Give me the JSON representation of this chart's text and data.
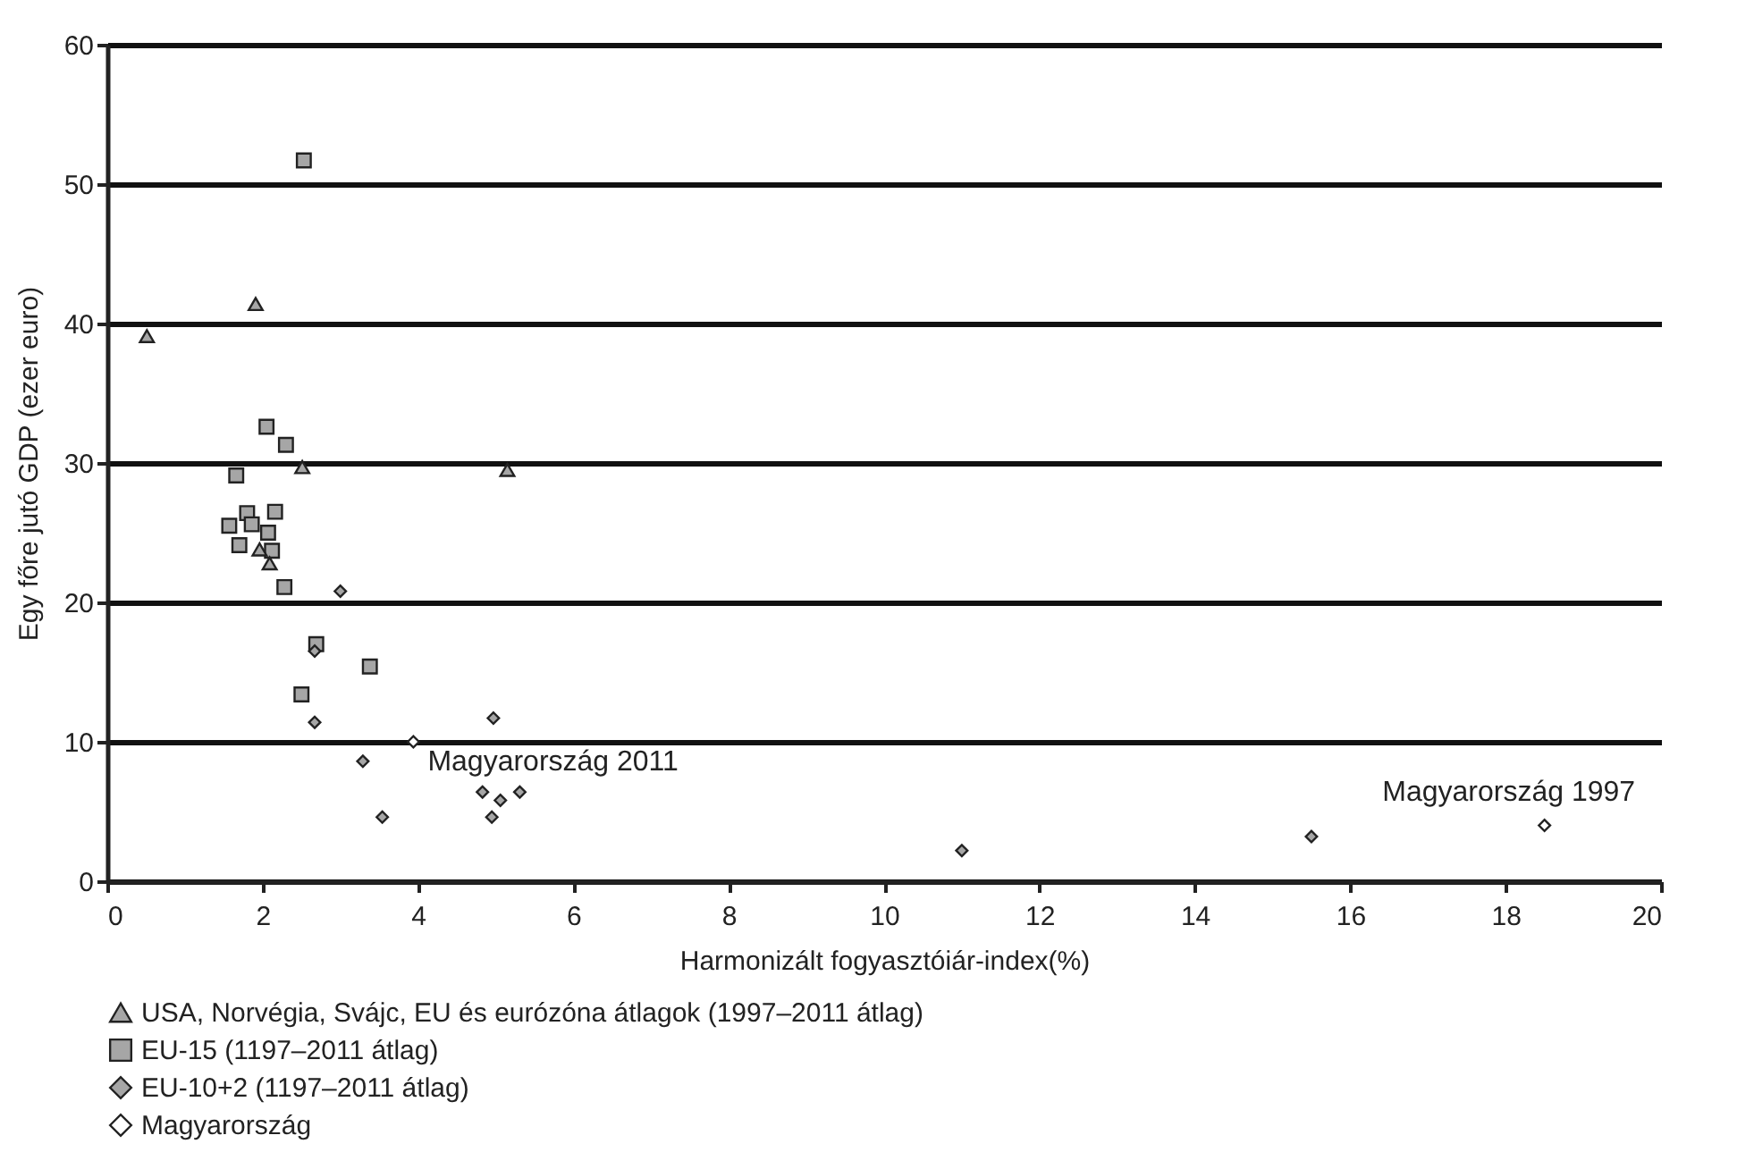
{
  "chart_data": {
    "type": "scatter",
    "xlabel": "Harmonizált fogyasztóiár-index(%)",
    "ylabel": "Egy főre jutó GDP (ezer euro)",
    "xlim": [
      0,
      20
    ],
    "xticks": [
      0,
      2,
      4,
      6,
      8,
      10,
      12,
      14,
      16,
      18,
      20
    ],
    "ylim": [
      0,
      60
    ],
    "yticks": [
      0,
      10,
      20,
      30,
      40,
      50,
      60
    ],
    "grid": "y",
    "legend": "bottom",
    "series": [
      {
        "name": "USA, Norvégia, Svájc, EU és eurózóna átlagok (1997–2011 átlag)",
        "color": "#a6a6a6",
        "marker": "triangle",
        "x": [
          0.51,
          1.91,
          2.51,
          5.15,
          1.96,
          2.09
        ],
        "values": [
          39.1,
          41.4,
          29.7,
          29.5,
          23.8,
          22.8
        ]
      },
      {
        "name": "EU-15 (1197–2011 átlag)",
        "color": "#a6a6a6",
        "marker": "square",
        "x": [
          2.53,
          2.05,
          2.3,
          1.66,
          1.8,
          2.16,
          1.57,
          1.86,
          2.07,
          1.7,
          2.12,
          2.28,
          2.69,
          3.38,
          2.5
        ],
        "values": [
          51.7,
          32.6,
          31.3,
          29.1,
          26.4,
          26.5,
          25.5,
          25.6,
          25.0,
          24.1,
          23.7,
          21.1,
          17.0,
          15.4,
          13.4
        ]
      },
      {
        "name": "EU-10+2 (1197–2011 átlag)",
        "color": "#a6a6a6",
        "marker": "diamond",
        "x": [
          3.0,
          2.67,
          2.67,
          4.97,
          3.29,
          3.54,
          4.83,
          5.06,
          5.31,
          4.95,
          11.0,
          15.5
        ],
        "values": [
          20.8,
          16.5,
          11.4,
          11.7,
          8.6,
          4.6,
          6.4,
          5.8,
          6.4,
          4.6,
          2.2,
          3.2
        ]
      },
      {
        "name": "Magyarország",
        "color": "#ffffff",
        "marker": "diamond",
        "x": [
          3.94,
          18.5
        ],
        "values": [
          10.0,
          4.0
        ]
      }
    ],
    "annotations": [
      {
        "text": "Magyarország 2011",
        "x": 3.94,
        "y": 10.0
      },
      {
        "text": "Magyarország 1997",
        "x": 18.5,
        "y": 4.0
      }
    ]
  }
}
